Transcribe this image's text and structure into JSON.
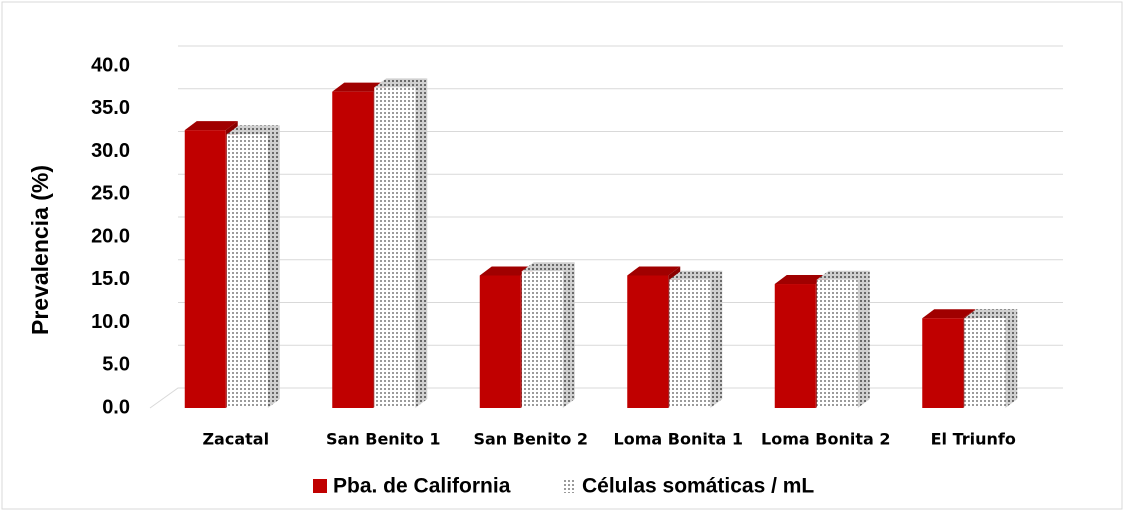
{
  "chart_data": {
    "type": "bar3d",
    "y_label": "Prevalencia (%)",
    "categories": [
      "Zacatal",
      "San Benito 1",
      "San Benito 2",
      "Loma Bonita 1",
      "Loma Bonita 2",
      "El Triunfo"
    ],
    "series": [
      {
        "name": "Pba. de California",
        "color": "#c00000",
        "values": [
          32.5,
          37,
          15.5,
          15.5,
          14.5,
          10.5
        ]
      },
      {
        "name": "Células somáticas / mL",
        "color": "#bfbfbf",
        "values": [
          32,
          37.5,
          16,
          15,
          15,
          10.5
        ]
      }
    ],
    "ylim": [
      0,
      40
    ],
    "yticks": [
      {
        "value": 0,
        "label": "0.0"
      },
      {
        "value": 5,
        "label": "5.0"
      },
      {
        "value": 10,
        "label": "10.0"
      },
      {
        "value": 15,
        "label": "15.0"
      },
      {
        "value": 20,
        "label": "20.0"
      },
      {
        "value": 25,
        "label": "25.0"
      },
      {
        "value": 30,
        "label": "30.0"
      },
      {
        "value": 35,
        "label": "35.0"
      },
      {
        "value": 40,
        "label": "40.0"
      }
    ],
    "grid": true,
    "legend": "bottom"
  }
}
